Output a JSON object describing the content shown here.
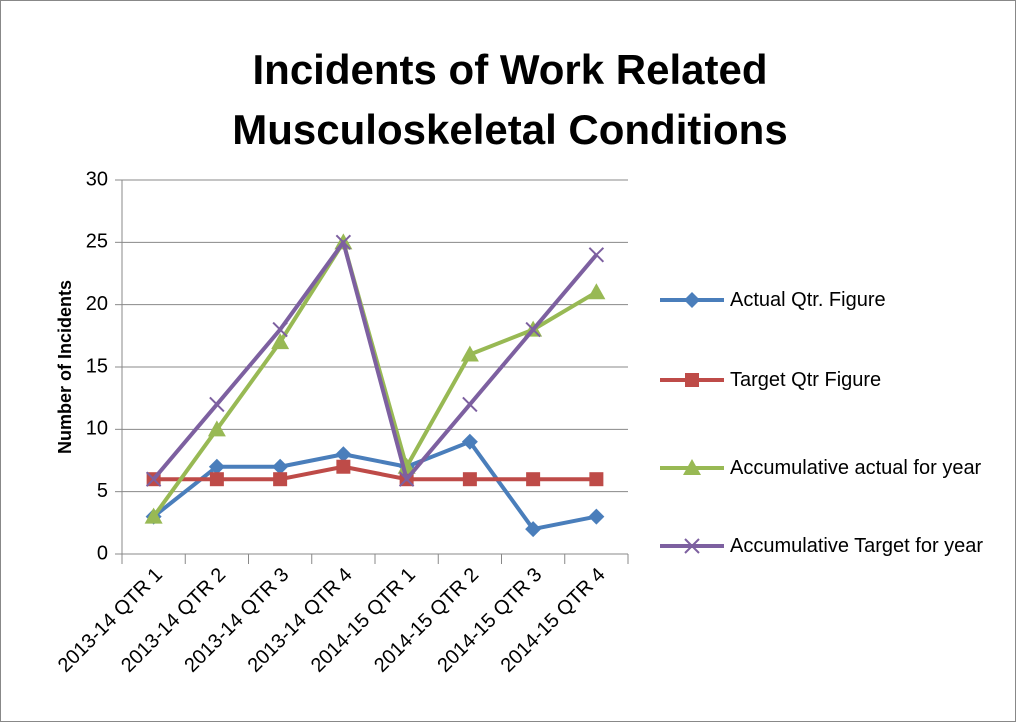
{
  "chart_data": {
    "type": "line",
    "title": "Incidents of Work Related Musculoskeletal Conditions",
    "y_label": "Number of Incidents",
    "categories": [
      "2013-14 QTR 1",
      "2013-14 QTR 2",
      "2013-14 QTR 3",
      "2013-14 QTR 4",
      "2014-15 QTR 1",
      "2014-15 QTR 2",
      "2014-15 QTR 3",
      "2014-15 QTR 4"
    ],
    "series": [
      {
        "name": "Actual Qtr. Figure",
        "color": "#4a7ebb",
        "marker": "diamond",
        "values": [
          3,
          7,
          7,
          8,
          7,
          9,
          2,
          3
        ]
      },
      {
        "name": "Target Qtr Figure",
        "color": "#be4b48",
        "marker": "square",
        "values": [
          6,
          6,
          6,
          7,
          6,
          6,
          6,
          6
        ]
      },
      {
        "name": "Accumulative actual for year",
        "color": "#98b954",
        "marker": "triangle",
        "values": [
          3,
          10,
          17,
          25,
          7,
          16,
          18,
          21
        ]
      },
      {
        "name": "Accumulative Target for year",
        "color": "#7d60a0",
        "marker": "x",
        "values": [
          6,
          12,
          18,
          25,
          6,
          12,
          18,
          24
        ]
      }
    ],
    "ylim": [
      0,
      30
    ],
    "yticks": [
      0,
      5,
      10,
      15,
      20,
      25,
      30
    ],
    "grid": true,
    "legend": "right"
  }
}
